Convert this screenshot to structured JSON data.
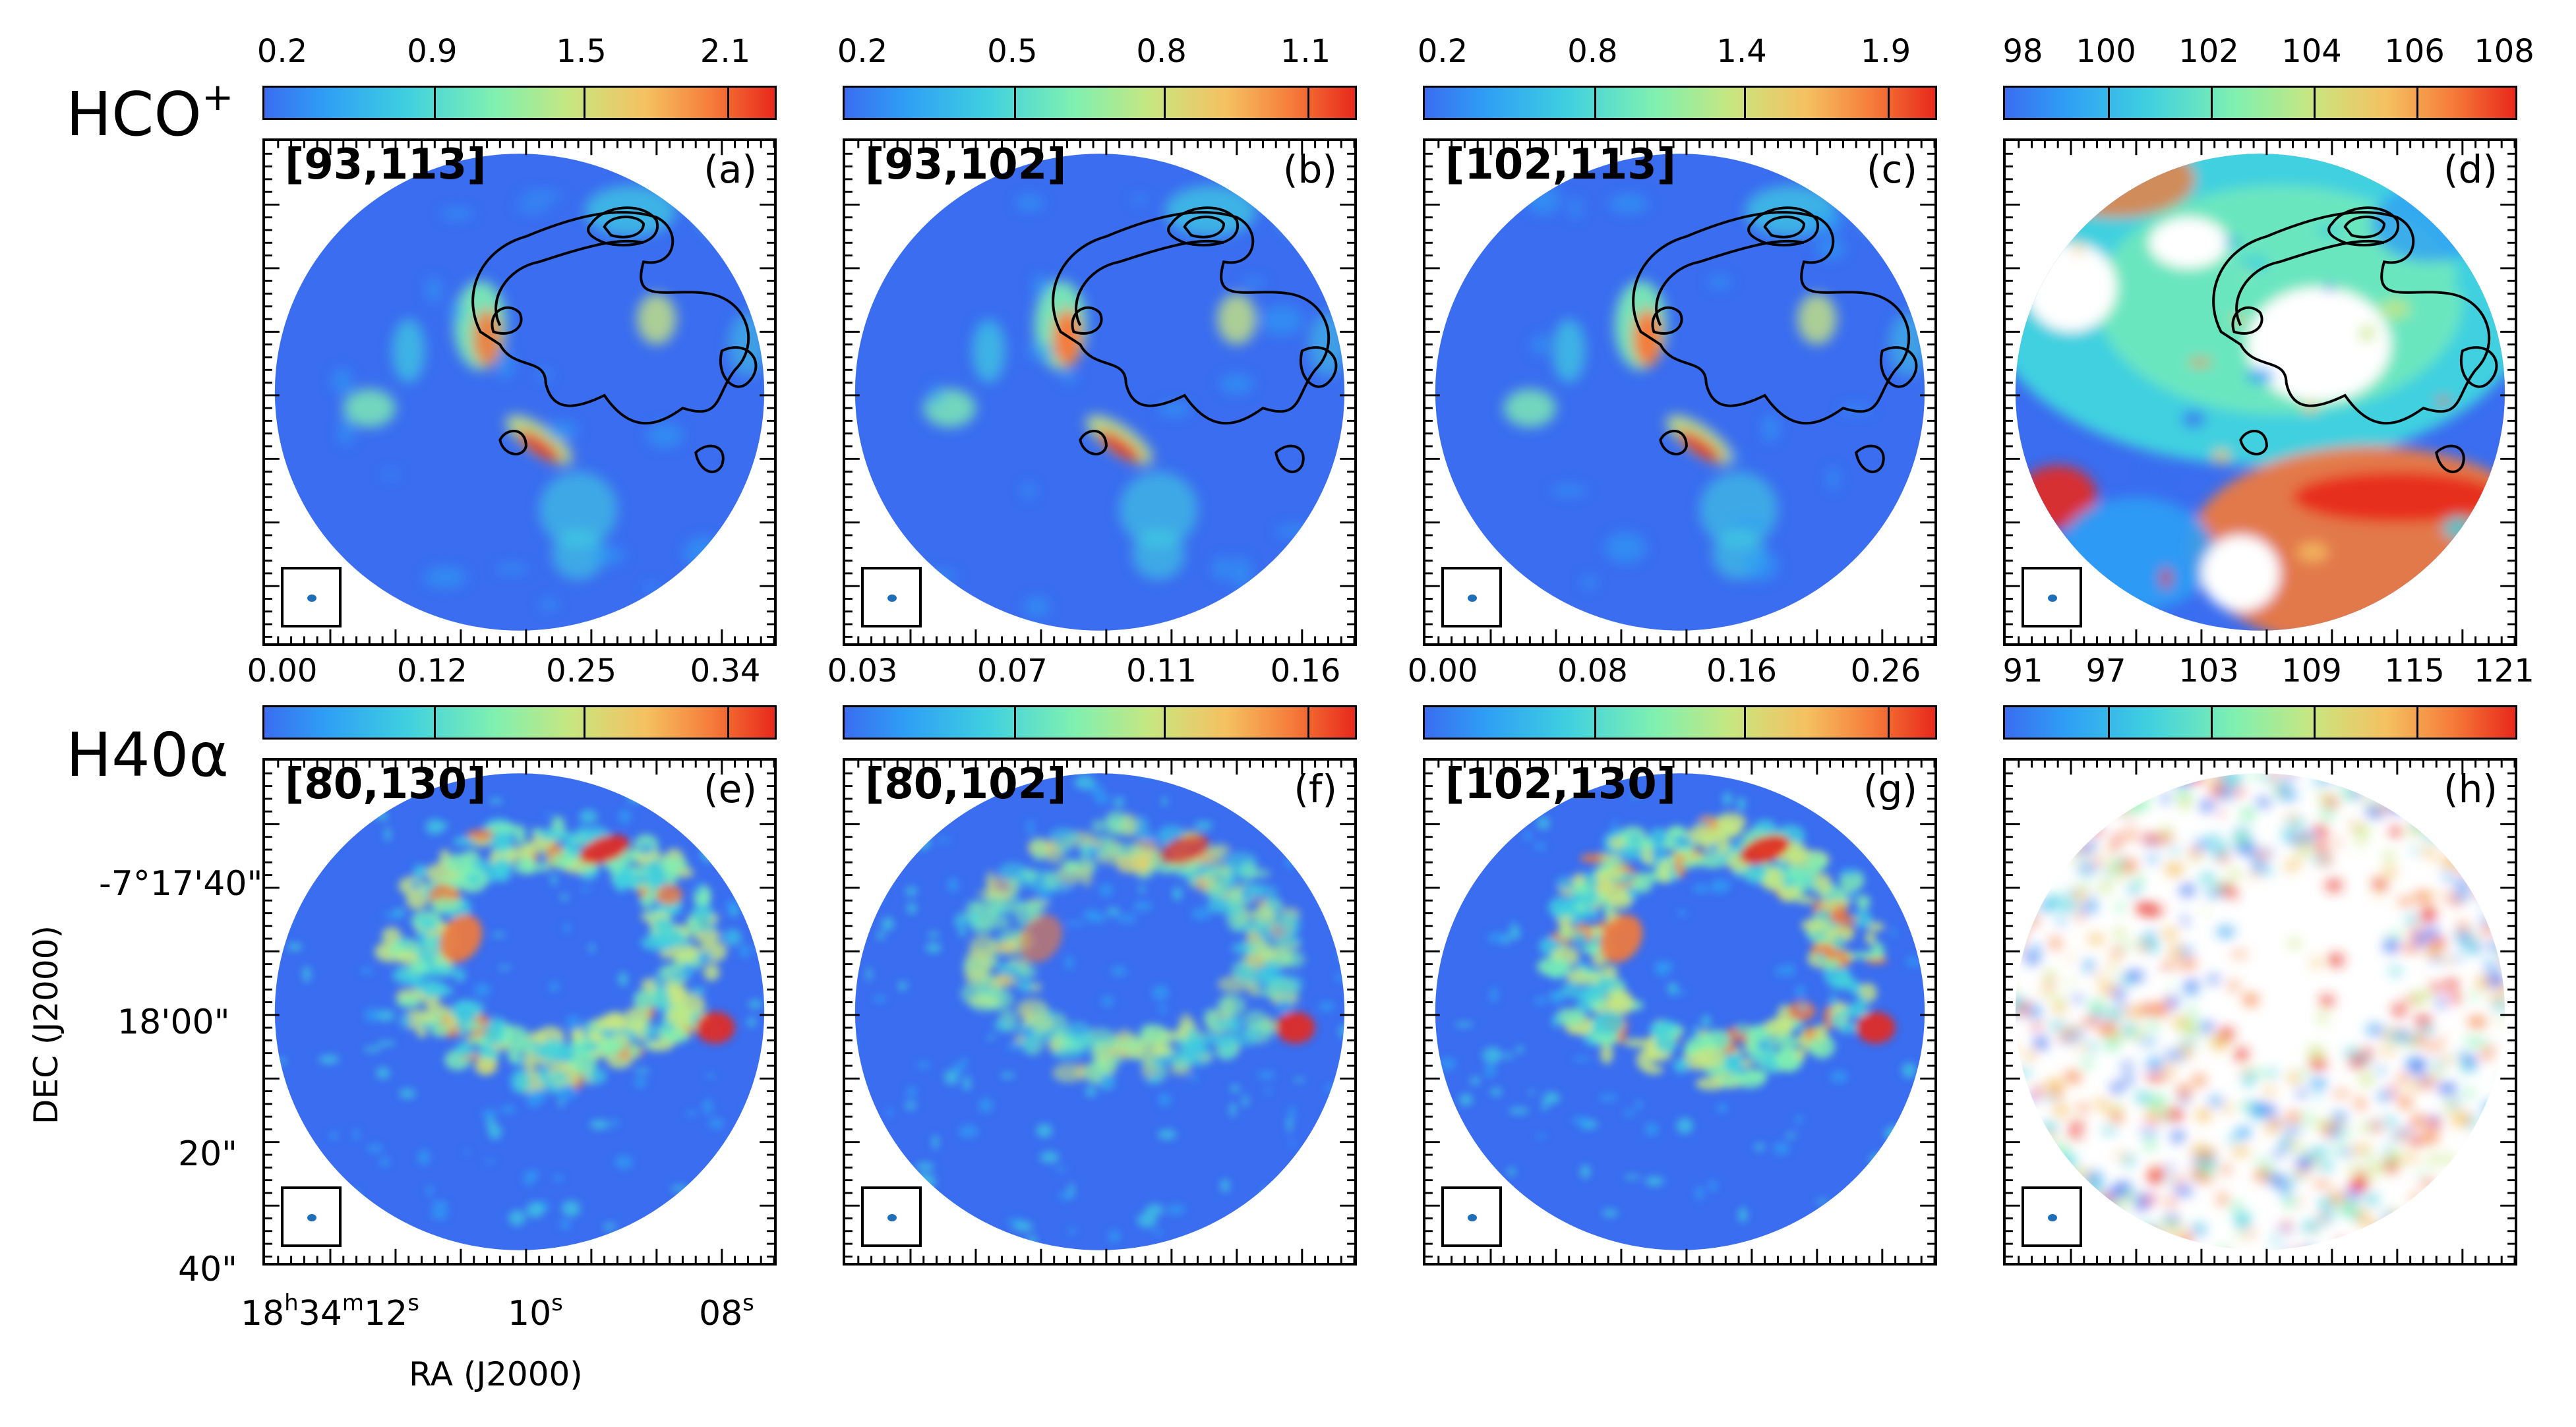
{
  "rows": [
    {
      "label": "HCO",
      "label_sup": "+"
    },
    {
      "label": "H40α",
      "label_sup": ""
    }
  ],
  "panels": [
    {
      "range": "[93,113]",
      "letter": "(a)",
      "colorbar_ticks": [
        "0.2",
        "0.9",
        "1.5",
        "2.1"
      ],
      "map": "hco-integrated",
      "contours": true
    },
    {
      "range": "[93,102]",
      "letter": "(b)",
      "colorbar_ticks": [
        "0.2",
        "0.5",
        "0.8",
        "1.1"
      ],
      "map": "hco-blue",
      "contours": true
    },
    {
      "range": "[102,113]",
      "letter": "(c)",
      "colorbar_ticks": [
        "0.2",
        "0.8",
        "1.4",
        "1.9"
      ],
      "map": "hco-red",
      "contours": true
    },
    {
      "range": "",
      "letter": "(d)",
      "colorbar_ticks": [
        "98",
        "100",
        "102",
        "104",
        "106",
        "108"
      ],
      "map": "hco-velocity",
      "contours": true
    },
    {
      "range": "[80,130]",
      "letter": "(e)",
      "colorbar_ticks": [
        "0.00",
        "0.12",
        "0.25",
        "0.34"
      ],
      "map": "h40-ring",
      "contours": false
    },
    {
      "range": "[80,102]",
      "letter": "(f)",
      "colorbar_ticks": [
        "0.03",
        "0.07",
        "0.11",
        "0.16"
      ],
      "map": "h40-ring-faint",
      "contours": false
    },
    {
      "range": "[102,130]",
      "letter": "(g)",
      "colorbar_ticks": [
        "0.00",
        "0.08",
        "0.16",
        "0.26"
      ],
      "map": "h40-ring",
      "contours": false
    },
    {
      "range": "",
      "letter": "(h)",
      "colorbar_ticks": [
        "91",
        "97",
        "103",
        "109",
        "115",
        "121"
      ],
      "map": "h40-velocity",
      "contours": false
    }
  ],
  "axes": {
    "ylabel": "DEC (J2000)",
    "xlabel": "RA (J2000)",
    "yticks": [
      "-7°17'40\"",
      "18'00\"",
      "20\"",
      "40\""
    ],
    "xticks": [
      {
        "main": "18",
        "parts": [
          [
            "h",
            "34"
          ],
          [
            "m",
            "12"
          ],
          [
            "s",
            ""
          ]
        ]
      },
      {
        "main": "10",
        "parts": [
          [
            "s",
            ""
          ]
        ]
      },
      {
        "main": "08",
        "parts": [
          [
            "s",
            ""
          ]
        ]
      }
    ]
  },
  "colors": {
    "background_map": "#3a6df0",
    "colormap": [
      "#3a6df0",
      "#2e9ff5",
      "#3fd0e0",
      "#7ff0b0",
      "#c8e680",
      "#f5c060",
      "#f57a38",
      "#e8281c"
    ],
    "beam_dot": "#1f6fb8"
  }
}
